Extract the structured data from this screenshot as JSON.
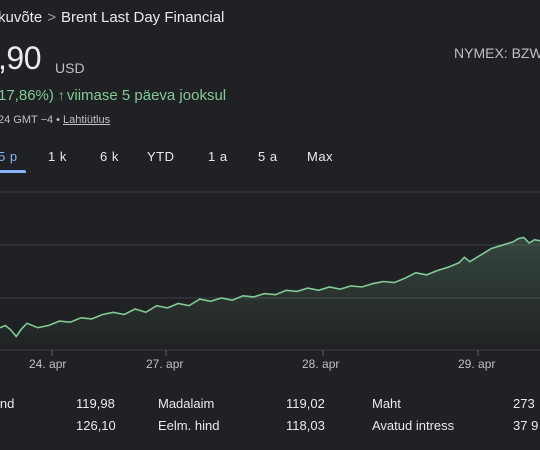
{
  "header": {
    "breadcrumb_prev": "kuvõte",
    "breadcrumb_sep": ">",
    "breadcrumb_current": "Brent Last Day Financial",
    "price": ",90",
    "currency": "USD",
    "exchange": "NYMEX: BZW",
    "change_pct": "17,86%)",
    "change_period": "viimase 5 päeva jooksul",
    "timestamp": "24 GMT −4",
    "disclaimer": "Lahtiütlus"
  },
  "tabs": [
    {
      "label": "5 p",
      "active": true
    },
    {
      "label": "1 k",
      "active": false
    },
    {
      "label": "6 k",
      "active": false
    },
    {
      "label": "YTD",
      "active": false
    },
    {
      "label": "1 a",
      "active": false
    },
    {
      "label": "5 a",
      "active": false
    },
    {
      "label": "Max",
      "active": false
    }
  ],
  "chart_data": {
    "type": "area",
    "x_labels": [
      "24. apr",
      "27. apr",
      "28. apr",
      "29. apr"
    ],
    "line_color": "#81c995",
    "fill_color": "#81c995",
    "grid": true,
    "points": [
      [
        0.0,
        0.62
      ],
      [
        0.01,
        0.6
      ],
      [
        0.02,
        0.64
      ],
      [
        0.03,
        0.7
      ],
      [
        0.04,
        0.63
      ],
      [
        0.05,
        0.58
      ],
      [
        0.07,
        0.62
      ],
      [
        0.09,
        0.6
      ],
      [
        0.11,
        0.56
      ],
      [
        0.13,
        0.57
      ],
      [
        0.15,
        0.53
      ],
      [
        0.17,
        0.54
      ],
      [
        0.19,
        0.5
      ],
      [
        0.21,
        0.48
      ],
      [
        0.23,
        0.5
      ],
      [
        0.25,
        0.45
      ],
      [
        0.27,
        0.48
      ],
      [
        0.29,
        0.42
      ],
      [
        0.31,
        0.44
      ],
      [
        0.33,
        0.4
      ],
      [
        0.35,
        0.42
      ],
      [
        0.37,
        0.36
      ],
      [
        0.39,
        0.38
      ],
      [
        0.41,
        0.35
      ],
      [
        0.43,
        0.37
      ],
      [
        0.45,
        0.33
      ],
      [
        0.47,
        0.34
      ],
      [
        0.49,
        0.31
      ],
      [
        0.51,
        0.32
      ],
      [
        0.53,
        0.28
      ],
      [
        0.55,
        0.29
      ],
      [
        0.57,
        0.26
      ],
      [
        0.59,
        0.28
      ],
      [
        0.61,
        0.25
      ],
      [
        0.63,
        0.27
      ],
      [
        0.65,
        0.24
      ],
      [
        0.67,
        0.25
      ],
      [
        0.69,
        0.22
      ],
      [
        0.71,
        0.2
      ],
      [
        0.73,
        0.21
      ],
      [
        0.75,
        0.17
      ],
      [
        0.77,
        0.12
      ],
      [
        0.79,
        0.14
      ],
      [
        0.81,
        0.1
      ],
      [
        0.83,
        0.07
      ],
      [
        0.85,
        0.03
      ],
      [
        0.86,
        -0.02
      ],
      [
        0.87,
        0.02
      ],
      [
        0.89,
        -0.04
      ],
      [
        0.91,
        -0.1
      ],
      [
        0.93,
        -0.13
      ],
      [
        0.95,
        -0.16
      ],
      [
        0.96,
        -0.19
      ],
      [
        0.97,
        -0.2
      ],
      [
        0.98,
        -0.15
      ],
      [
        0.99,
        -0.18
      ],
      [
        1.0,
        -0.17
      ]
    ]
  },
  "stats": {
    "left": [
      {
        "label": "ind",
        "value": "119,98"
      },
      {
        "label": "",
        "value": "126,10"
      }
    ],
    "middle": [
      {
        "label": "Madalaim",
        "value": "119,02"
      },
      {
        "label": "Eelm. hind",
        "value": "118,03"
      }
    ],
    "right": [
      {
        "label": "Maht",
        "value": "273"
      },
      {
        "label": "Avatud intress",
        "value": "37 9"
      }
    ]
  }
}
